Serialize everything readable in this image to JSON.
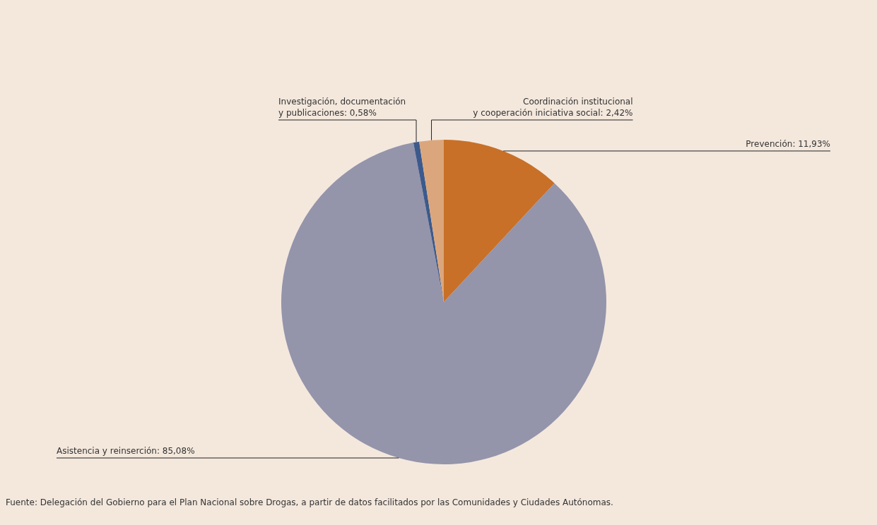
{
  "chart_data": {
    "type": "pie",
    "categories": [
      "Prevención",
      "Asistencia y reinserción",
      "Investigación, documentación\ny publicaciones",
      "Coordinación institucional\ny cooperación iniciativa social"
    ],
    "values": [
      11.93,
      85.08,
      0.58,
      2.42
    ],
    "value_labels": [
      "11,93%",
      "85,08%",
      "0,58%",
      "2,42%"
    ],
    "colors": [
      "#c87028",
      "#9494ab",
      "#3c5a8c",
      "#dca67c"
    ],
    "annotations": [
      "Fuente: Delegación del Gobierno para el Plan Nacional sobre Drogas, a partir de datos facilitados por las Comunidades y Ciudades Autónomas."
    ]
  }
}
